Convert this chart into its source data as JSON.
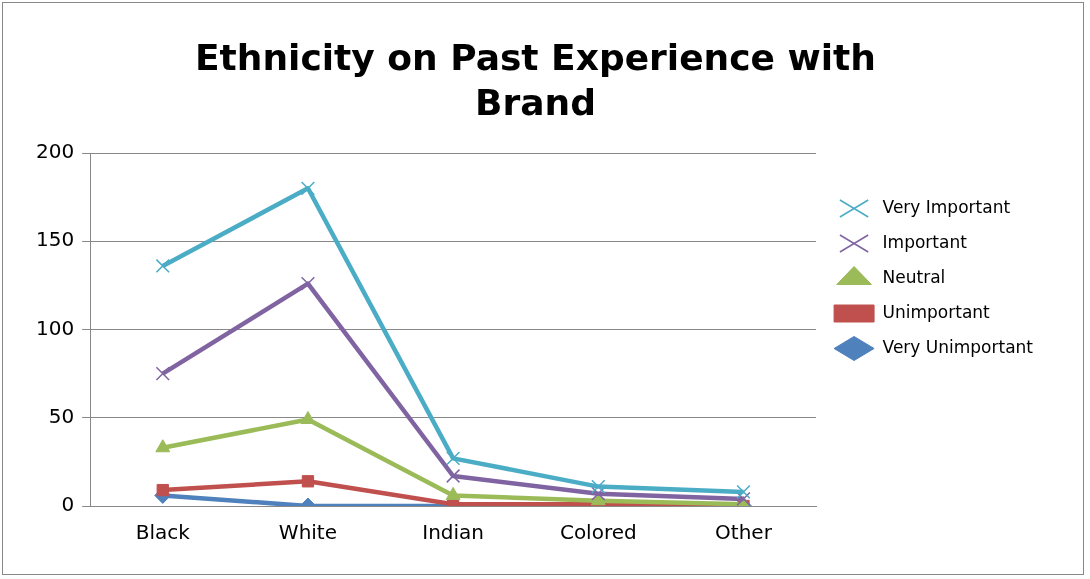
{
  "chart_data": {
    "type": "line",
    "title": "Ethnicity on Past Experience with Brand",
    "categories": [
      "Black",
      "White",
      "Indian",
      "Colored",
      "Other"
    ],
    "series": [
      {
        "name": "Very Important",
        "color": "#4bacc6",
        "marker": "cross",
        "values": [
          136,
          180,
          27,
          11,
          8
        ]
      },
      {
        "name": "Important",
        "color": "#8064a2",
        "marker": "cross",
        "values": [
          75,
          126,
          17,
          7,
          4
        ]
      },
      {
        "name": "Neutral",
        "color": "#9bbb59",
        "marker": "triangle",
        "values": [
          33,
          49,
          6,
          3,
          1
        ]
      },
      {
        "name": "Unimportant",
        "color": "#c0504d",
        "marker": "square",
        "values": [
          9,
          14,
          1,
          1,
          0
        ]
      },
      {
        "name": "Very Unimportant",
        "color": "#4f81bd",
        "marker": "diamond",
        "values": [
          6,
          0,
          0,
          0,
          0
        ]
      }
    ],
    "ylim": [
      0,
      200
    ],
    "yticks": [
      0,
      50,
      100,
      150,
      200
    ],
    "grid": "y",
    "legend": "right",
    "line_style": "solid"
  }
}
